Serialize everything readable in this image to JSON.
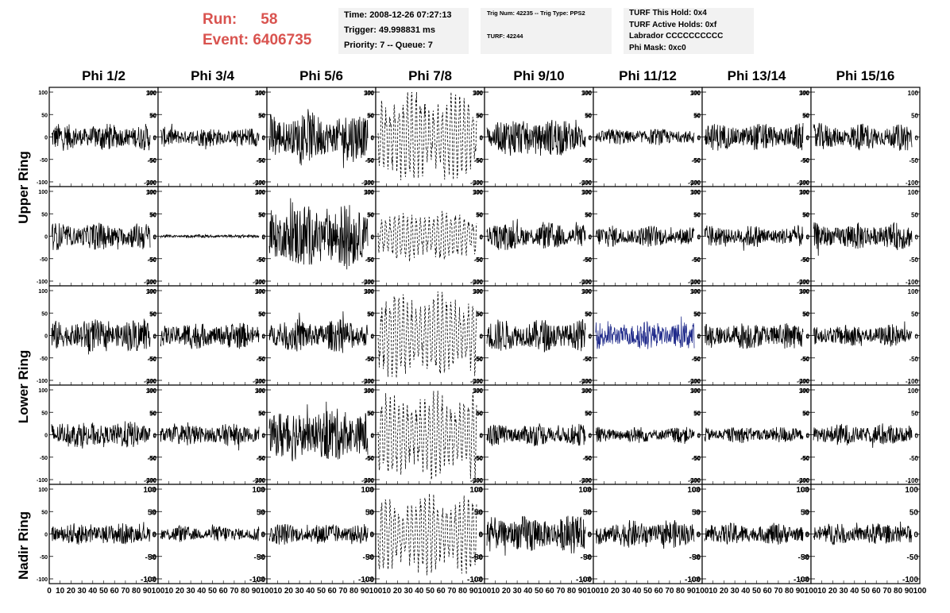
{
  "run": {
    "label": "Run:",
    "value": "58"
  },
  "event": {
    "label": "Event:",
    "value": "6406735"
  },
  "accent_color": "#d9534f",
  "info": {
    "time": "Time: 2008-12-26 07:27:13",
    "trigger": "Trigger: 49.998831 ms",
    "priority": "Priority: 7 -- Queue: 7",
    "trig_num": "Trig Num: 42235 -- Trig Type: PPS2",
    "turf": "TURF: 42244",
    "turf_hold": "TURF This Hold: 0x4",
    "turf_active": "TURF Active Holds: 0xf",
    "labrador": "Labrador CCCCCCCCCC",
    "phi_mask": "Phi Mask: 0xc0"
  },
  "columns": [
    "Phi 1/2",
    "Phi 3/4",
    "Phi 5/6",
    "Phi 7/8",
    "Phi 9/10",
    "Phi 11/12",
    "Phi 13/14",
    "Phi 15/16"
  ],
  "rows": [
    "Upper Ring",
    "Lower Ring",
    "Nadir Ring"
  ],
  "chart_data": {
    "type": "line",
    "title": "",
    "xlabel": "",
    "ylabel": "",
    "ylim": [
      -100,
      100
    ],
    "xlim": [
      0,
      100
    ],
    "y_ticks": [
      "100",
      "50",
      "0",
      "-50",
      "-100"
    ],
    "x_ticks": [
      "0",
      "10",
      "20",
      "30",
      "40",
      "50",
      "60",
      "70",
      "80",
      "90",
      "100"
    ],
    "grid": false,
    "waveform_colors": {
      "normal": "#000000",
      "highlighted": "#1f2a8a"
    },
    "highlighted_panel": {
      "row": 2,
      "col": 5
    },
    "dashed_column": 3,
    "panel_amplitude": [
      [
        25,
        18,
        45,
        80,
        35,
        15,
        25,
        25
      ],
      [
        25,
        3,
        60,
        45,
        25,
        20,
        20,
        25
      ],
      [
        30,
        25,
        30,
        75,
        30,
        25,
        25,
        20
      ],
      [
        25,
        20,
        50,
        75,
        20,
        15,
        15,
        20
      ],
      [
        20,
        15,
        20,
        70,
        35,
        25,
        20,
        20
      ]
    ]
  }
}
